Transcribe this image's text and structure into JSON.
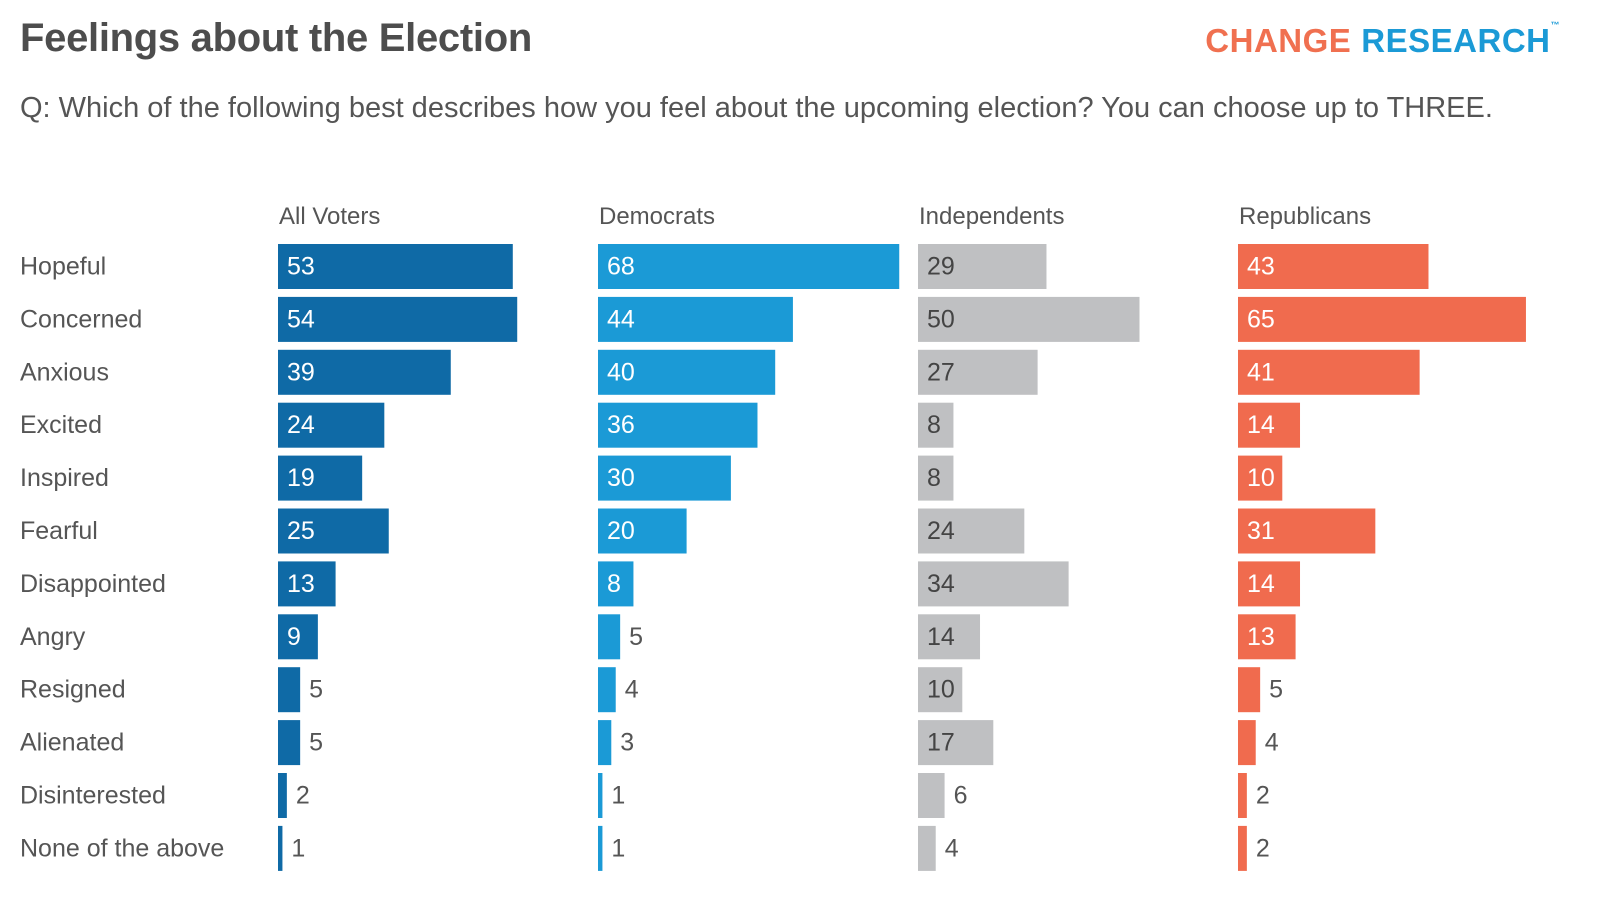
{
  "title": "Feelings about the Election",
  "logo": {
    "word1": "CHANGE",
    "word2": "RESEARCH",
    "tm": "™"
  },
  "question": "Q: Which of the following best describes how you feel about the upcoming election? You can choose up to THREE.",
  "chart_data": {
    "type": "bar",
    "orientation": "horizontal",
    "categories": [
      "Hopeful",
      "Concerned",
      "Anxious",
      "Excited",
      "Inspired",
      "Fearful",
      "Disappointed",
      "Angry",
      "Resigned",
      "Alienated",
      "Disinterested",
      "None of the above"
    ],
    "series": [
      {
        "name": "All Voters",
        "color": "#0f6aa6",
        "values": [
          53,
          54,
          39,
          24,
          19,
          25,
          13,
          9,
          5,
          5,
          2,
          1
        ]
      },
      {
        "name": "Democrats",
        "color": "#1b9ad6",
        "values": [
          68,
          44,
          40,
          36,
          30,
          20,
          8,
          5,
          4,
          3,
          1,
          1
        ]
      },
      {
        "name": "Independents",
        "color": "#bfc0c2",
        "values": [
          29,
          50,
          27,
          8,
          8,
          24,
          34,
          14,
          10,
          17,
          6,
          4
        ]
      },
      {
        "name": "Republicans",
        "color": "#f06b4e",
        "values": [
          43,
          65,
          41,
          14,
          10,
          31,
          14,
          13,
          5,
          4,
          2,
          2
        ]
      }
    ],
    "label_colors": {
      "inside_dark": "#ffffff",
      "inside_light": "#444444",
      "outside": "#555555"
    }
  }
}
